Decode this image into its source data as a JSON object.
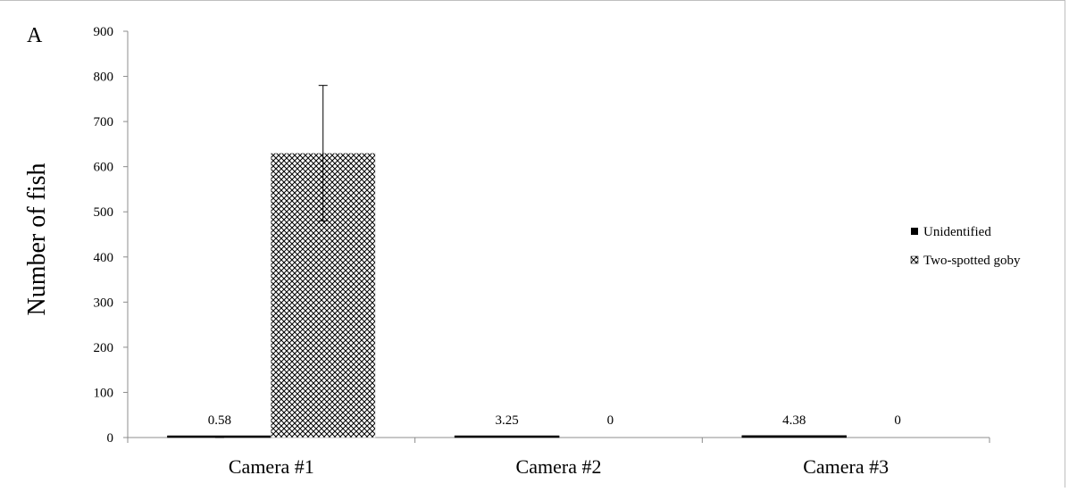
{
  "panel_label": "A",
  "chart_data": {
    "type": "bar",
    "title": "",
    "xlabel": "",
    "ylabel": "Number of fish",
    "ylim": [
      0,
      900
    ],
    "yticks": [
      0,
      100,
      200,
      300,
      400,
      500,
      600,
      700,
      800,
      900
    ],
    "categories": [
      "Camera #1",
      "Camera #2",
      "Camera #3"
    ],
    "series": [
      {
        "name": "Unidentified",
        "fill": "solid",
        "color": "#000000",
        "values": [
          0.58,
          3.25,
          4.38
        ],
        "error": [
          2,
          0,
          0
        ],
        "data_labels": [
          "0.58",
          "3.25",
          "4.38"
        ]
      },
      {
        "name": "Two-spotted goby",
        "fill": "crosshatch",
        "color": "#000000",
        "values": [
          630,
          0,
          0
        ],
        "error": [
          150,
          0,
          0
        ],
        "data_labels": [
          "",
          "0",
          "0"
        ]
      }
    ],
    "legend_position": "right",
    "grid": false
  }
}
